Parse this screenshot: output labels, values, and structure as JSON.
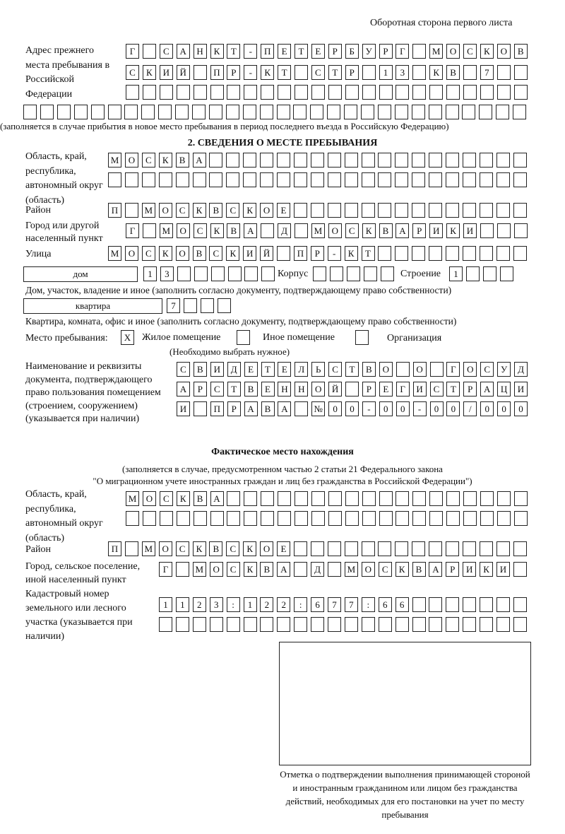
{
  "header": "Оборотная сторона первого листа",
  "prev_address": {
    "label": "Адрес прежнего места пребывания в Российской Федерации",
    "rows": [
      [
        "Г",
        "",
        "С",
        "А",
        "Н",
        "К",
        "Т",
        "-",
        "П",
        "Е",
        "Т",
        "Е",
        "Р",
        "Б",
        "У",
        "Р",
        "Г",
        "",
        "М",
        "О",
        "С",
        "К",
        "О",
        "В"
      ],
      [
        "С",
        "К",
        "И",
        "Й",
        "",
        "П",
        "Р",
        "-",
        "К",
        "Т",
        "",
        "С",
        "Т",
        "Р",
        "",
        "1",
        "3",
        "",
        "К",
        "В",
        "",
        "7",
        "",
        ""
      ],
      [
        "",
        "",
        "",
        "",
        "",
        "",
        "",
        "",
        "",
        "",
        "",
        "",
        "",
        "",
        "",
        "",
        "",
        "",
        "",
        "",
        "",
        "",
        "",
        ""
      ],
      [
        "",
        "",
        "",
        "",
        "",
        "",
        "",
        "",
        "",
        "",
        "",
        "",
        "",
        "",
        "",
        "",
        "",
        "",
        "",
        "",
        "",
        "",
        "",
        "",
        "",
        "",
        "",
        "",
        "",
        ""
      ]
    ],
    "note": "(заполняется в случае прибытия в новое место пребывания в период последнего въезда в Российскую Федерацию)"
  },
  "section2": {
    "title": "2. СВЕДЕНИЯ О МЕСТЕ ПРЕБЫВАНИЯ",
    "region_label": "Область, край, республика, автономный округ (область)",
    "region_rows": [
      [
        "М",
        "О",
        "С",
        "К",
        "В",
        "А",
        "",
        "",
        "",
        "",
        "",
        "",
        "",
        "",
        "",
        "",
        "",
        "",
        "",
        "",
        "",
        "",
        "",
        "",
        ""
      ],
      [
        "",
        "",
        "",
        "",
        "",
        "",
        "",
        "",
        "",
        "",
        "",
        "",
        "",
        "",
        "",
        "",
        "",
        "",
        "",
        "",
        "",
        "",
        "",
        "",
        ""
      ]
    ],
    "district_label": "Район",
    "district": [
      "П",
      "",
      "М",
      "О",
      "С",
      "К",
      "В",
      "С",
      "К",
      "О",
      "Е",
      "",
      "",
      "",
      "",
      "",
      "",
      "",
      "",
      "",
      "",
      "",
      "",
      "",
      ""
    ],
    "city_label": "Город или другой населенный пункт",
    "city": [
      "Г",
      "",
      "М",
      "О",
      "С",
      "К",
      "В",
      "А",
      "",
      "Д",
      "",
      "М",
      "О",
      "С",
      "К",
      "В",
      "А",
      "Р",
      "И",
      "К",
      "И",
      "",
      "",
      ""
    ],
    "street_label": "Улица",
    "street": [
      "М",
      "О",
      "С",
      "К",
      "О",
      "В",
      "С",
      "К",
      "И",
      "Й",
      "",
      "П",
      "Р",
      "-",
      "К",
      "Т",
      "",
      "",
      "",
      "",
      "",
      "",
      "",
      "",
      ""
    ],
    "house_type": "дом",
    "house": [
      "1",
      "3",
      "",
      "",
      "",
      "",
      "",
      ""
    ],
    "korpus_label": "Корпус",
    "korpus": [
      "",
      "",
      "",
      "",
      ""
    ],
    "building_label": "Строение",
    "building": [
      "1",
      "",
      "",
      ""
    ],
    "house_note": "Дом, участок, владение и иное (заполнить согласно документу, подтверждающему право собственности)",
    "flat_type": "квартира",
    "flat": [
      "7",
      "",
      "",
      ""
    ],
    "flat_note": "Квартира, комната, офис и иное (заполнить согласно документу, подтверждающему право собственности)",
    "stay_label": "Место пребывания:",
    "stay_options": [
      {
        "mark": "X",
        "label": "Жилое помещение",
        "checked": true
      },
      {
        "mark": "",
        "label": "Иное помещение",
        "checked": false
      },
      {
        "mark": "",
        "label": "Организация",
        "checked": false
      }
    ],
    "stay_note": "(Необходимо выбрать нужное)",
    "doc_label": "Наименование и реквизиты документа, подтверждающего право пользования помещением (строением, сооружением) (указывается при наличии)",
    "doc_rows": [
      [
        "С",
        "В",
        "И",
        "Д",
        "Е",
        "Т",
        "Е",
        "Л",
        "Ь",
        "С",
        "Т",
        "В",
        "О",
        "",
        "О",
        "",
        "Г",
        "О",
        "С",
        "У",
        "Д"
      ],
      [
        "А",
        "Р",
        "С",
        "Т",
        "В",
        "Е",
        "Н",
        "Н",
        "О",
        "Й",
        "",
        "Р",
        "Е",
        "Г",
        "И",
        "С",
        "Т",
        "Р",
        "А",
        "Ц",
        "И"
      ],
      [
        "И",
        "",
        "П",
        "Р",
        "А",
        "В",
        "А",
        "",
        "№",
        "0",
        "0",
        "-",
        "0",
        "0",
        "-",
        "0",
        "0",
        "/",
        "0",
        "0",
        "0"
      ]
    ]
  },
  "actual": {
    "title": "Фактическое место нахождения",
    "note1": "(заполняется в случае, предусмотренном частью 2 статьи 21 Федерального закона",
    "note2": "\"О миграционном учете иностранных граждан и лиц без гражданства в Российской Федерации\")",
    "region_label": "Область, край, республика, автономный округ (область)",
    "region_rows": [
      [
        "М",
        "О",
        "С",
        "К",
        "В",
        "А",
        "",
        "",
        "",
        "",
        "",
        "",
        "",
        "",
        "",
        "",
        "",
        "",
        "",
        "",
        "",
        "",
        "",
        ""
      ],
      [
        "",
        "",
        "",
        "",
        "",
        "",
        "",
        "",
        "",
        "",
        "",
        "",
        "",
        "",
        "",
        "",
        "",
        "",
        "",
        "",
        "",
        "",
        "",
        ""
      ]
    ],
    "district_label": "Район",
    "district": [
      "П",
      "",
      "М",
      "О",
      "С",
      "К",
      "В",
      "С",
      "К",
      "О",
      "Е",
      "",
      "",
      "",
      "",
      "",
      "",
      "",
      "",
      "",
      "",
      "",
      "",
      "",
      ""
    ],
    "city_label": "Город, сельское поселение, иной населенный пункт",
    "city": [
      "Г",
      "",
      "М",
      "О",
      "С",
      "К",
      "В",
      "А",
      "",
      "Д",
      "",
      "М",
      "О",
      "С",
      "К",
      "В",
      "А",
      "Р",
      "И",
      "К",
      "И",
      ""
    ],
    "cadastre_label": "Кадастровый номер земельного или лесного участка (указывается при наличии)",
    "cadastre_rows": [
      [
        "1",
        "1",
        "2",
        "3",
        ":",
        "1",
        "2",
        "2",
        ":",
        "6",
        "7",
        "7",
        ":",
        "6",
        "6",
        "",
        "",
        "",
        "",
        "",
        "",
        ""
      ],
      [
        "",
        "",
        "",
        "",
        "",
        "",
        "",
        "",
        "",
        "",
        "",
        "",
        "",
        "",
        "",
        "",
        "",
        "",
        "",
        "",
        "",
        ""
      ]
    ]
  },
  "stamp_caption": "Отметка о подтверждении выполнения принимающей стороной и иностранным гражданином или лицом без гражданства действий, необходимых для его постановки на учет по месту пребывания"
}
